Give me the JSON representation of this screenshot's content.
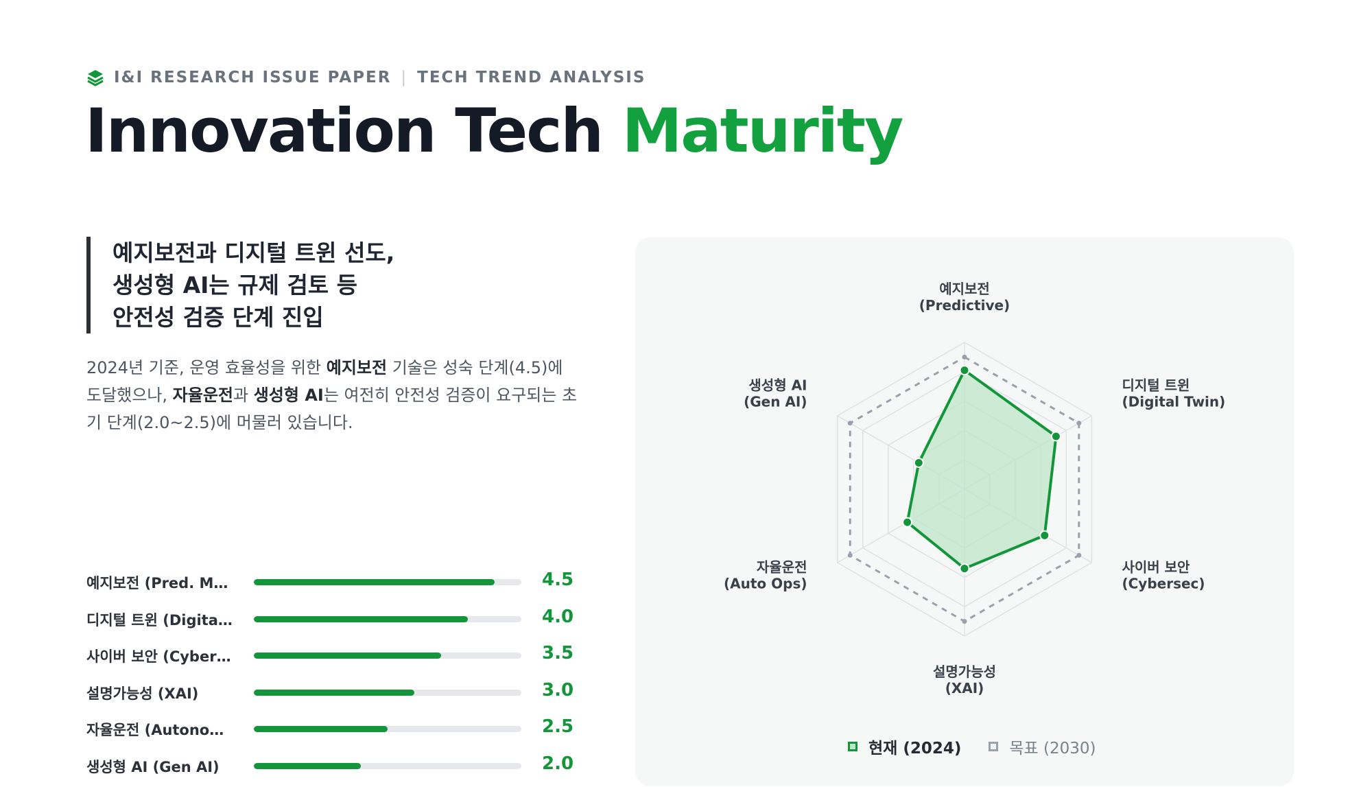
{
  "header": {
    "eyebrow_left": "I&I RESEARCH ISSUE PAPER",
    "eyebrow_divider": "|",
    "eyebrow_right": "TECH TREND ANALYSIS",
    "title_main": "Innovation Tech ",
    "title_accent": "Maturity"
  },
  "highlight": {
    "lines": [
      "예지보전과 디지털 트윈 선도,",
      "생성형 AI는 규제 검토 등",
      "안전성 검증 단계 진입"
    ]
  },
  "description": {
    "p1": "2024년 기준, 운영 효율성을 위한 ",
    "b1": "예지보전",
    "p2": " 기술은 성숙 단계(4.5)에 도달했으나, ",
    "b2": "자율운전",
    "p3": "과 ",
    "b3": "생성형 AI",
    "p4": "는 여전히 안전성 검증이 요구되는 초기 단계(2.0~2.5)에 머물러 있습니다."
  },
  "bar_list": {
    "max": 5,
    "items": [
      {
        "label": "예지보전 (Pred. Mai…",
        "value": 4.5,
        "display": "4.5"
      },
      {
        "label": "디지털 트윈 (Digital …",
        "value": 4.0,
        "display": "4.0"
      },
      {
        "label": "사이버 보안 (Cybers…",
        "value": 3.5,
        "display": "3.5"
      },
      {
        "label": "설명가능성 (XAI)",
        "value": 3.0,
        "display": "3.0"
      },
      {
        "label": "자율운전 (Autonom…",
        "value": 2.5,
        "display": "2.5"
      },
      {
        "label": "생성형 AI (Gen AI)",
        "value": 2.0,
        "display": "2.0"
      }
    ]
  },
  "chart_data": {
    "type": "radar",
    "axes": [
      {
        "line1": "예지보전",
        "line2": "(Predictive)"
      },
      {
        "line1": "디지털 트윈",
        "line2": "(Digital Twin)"
      },
      {
        "line1": "사이버 보안",
        "line2": "(Cybersec)"
      },
      {
        "line1": "설명가능성",
        "line2": "(XAI)"
      },
      {
        "line1": "자율운전",
        "line2": "(Auto Ops)"
      },
      {
        "line1": "생성형 AI",
        "line2": "(Gen AI)"
      }
    ],
    "range": [
      0,
      5
    ],
    "grid_levels": 5,
    "series": [
      {
        "name": "현재 (2024)",
        "values": [
          4.5,
          4.0,
          3.5,
          3.0,
          2.5,
          2.0
        ],
        "color": "#13953a",
        "fill": "#bfe5c9"
      },
      {
        "name": "목표 (2030)",
        "values": [
          5,
          5,
          5,
          5,
          5,
          5
        ],
        "color": "#9aa1aa"
      }
    ],
    "legend_position": "bottom"
  }
}
